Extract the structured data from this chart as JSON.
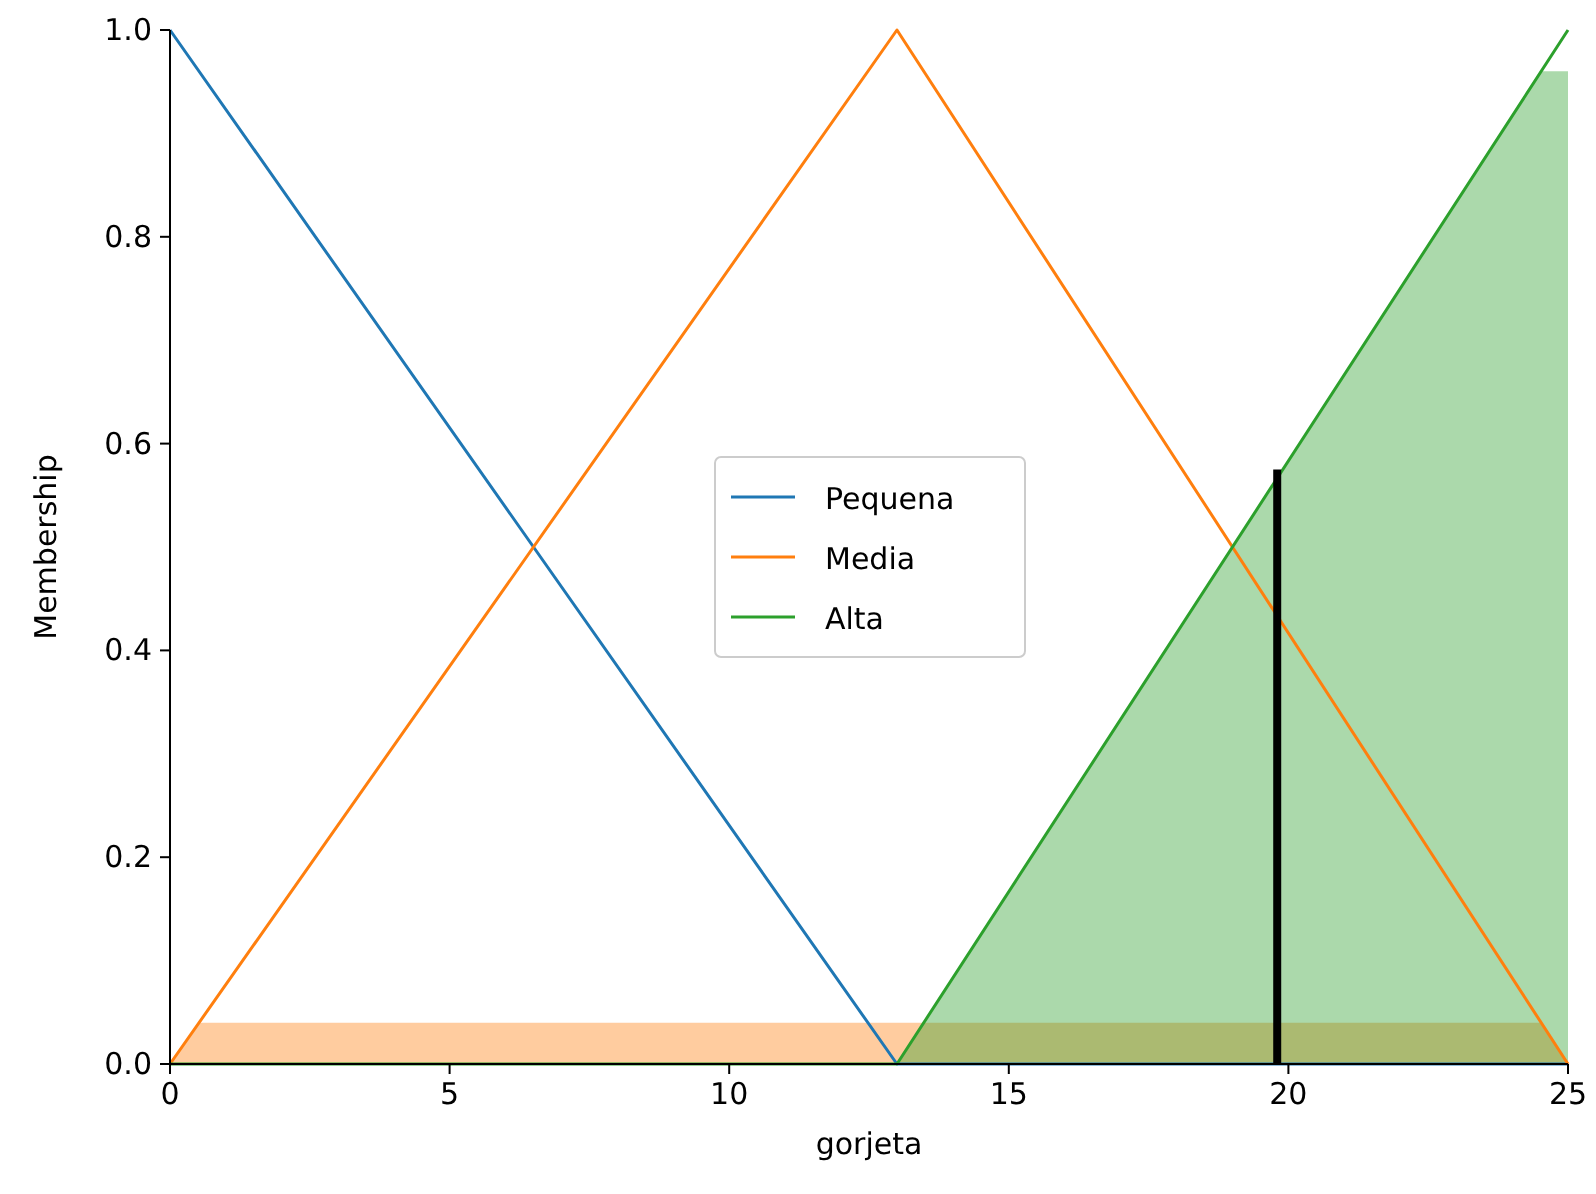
{
  "chart_data": {
    "type": "line",
    "xlabel": "gorjeta",
    "ylabel": "Membership",
    "xlim": [
      0,
      25
    ],
    "ylim": [
      0,
      1
    ],
    "xticks": [
      0,
      5,
      10,
      15,
      20,
      25
    ],
    "yticks": [
      {
        "value": 0,
        "label": "0.0"
      },
      {
        "value": 0.2,
        "label": "0.2"
      },
      {
        "value": 0.4,
        "label": "0.4"
      },
      {
        "value": 0.6,
        "label": "0.6"
      },
      {
        "value": 0.8,
        "label": "0.8"
      },
      {
        "value": 1,
        "label": "1.0"
      }
    ],
    "legend": "center",
    "grid": false,
    "series": [
      {
        "type": "area",
        "color": "#ff7f0e",
        "x": [
          0,
          0.5,
          24.5,
          25
        ],
        "values": [
          0,
          0.04,
          0.04,
          0
        ]
      },
      {
        "type": "area",
        "color": "#2ca02c",
        "x": [
          13,
          24.5,
          25
        ],
        "values": [
          0,
          0.96,
          0.96
        ]
      },
      {
        "name": "Pequena",
        "color": "#1f77b4",
        "x": [
          0,
          13,
          25
        ],
        "values": [
          1,
          0,
          0
        ]
      },
      {
        "name": "Media",
        "color": "#ff7f0e",
        "x": [
          0,
          13,
          25
        ],
        "values": [
          0,
          1,
          0
        ]
      },
      {
        "name": "Alta",
        "color": "#2ca02c",
        "x": [
          0,
          13,
          25
        ],
        "values": [
          0,
          0,
          1
        ]
      },
      {
        "color": "#000000",
        "x": [
          19.8,
          19.8
        ],
        "values": [
          0,
          0.575
        ]
      }
    ]
  }
}
